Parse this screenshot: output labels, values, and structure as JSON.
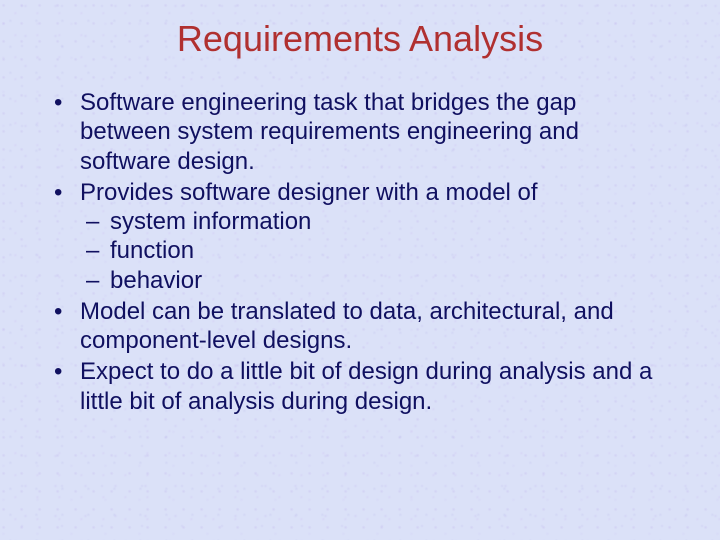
{
  "slide": {
    "title": "Requirements Analysis",
    "title_color": "#b03030",
    "title_fontsize": 36,
    "body_color": "#101060",
    "body_fontsize": 24,
    "background_color": "#dbe1f8",
    "bullets": [
      {
        "text": "Software engineering task that bridges the gap between system requirements engineering and software design."
      },
      {
        "text": "Provides software designer with a model of",
        "sub": [
          "system information",
          "function",
          "behavior"
        ]
      },
      {
        "text": "Model can be translated to data, architectural, and component-level designs."
      },
      {
        "text": "Expect to do a little bit of design during analysis and a little bit of analysis during design."
      }
    ]
  }
}
